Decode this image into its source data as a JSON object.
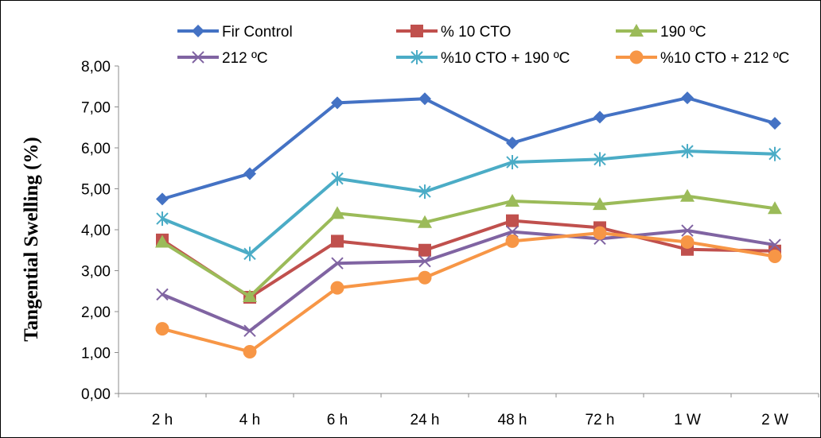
{
  "chart_data": {
    "type": "line",
    "title": "",
    "xlabel": "",
    "ylabel": "Tangential Swelling (%)",
    "categories": [
      "2 h",
      "4 h",
      "6 h",
      "24 h",
      "48 h",
      "72 h",
      "1 W",
      "2 W"
    ],
    "ylim": [
      0,
      8
    ],
    "yticks": [
      "0,00",
      "1,00",
      "2,00",
      "3,00",
      "4,00",
      "5,00",
      "6,00",
      "7,00",
      "8,00"
    ],
    "grid": false,
    "legend_position": "top",
    "series": [
      {
        "name": "Fir Control",
        "color": "#4472C4",
        "marker": "diamond",
        "values": [
          4.75,
          5.37,
          7.1,
          7.2,
          6.12,
          6.75,
          7.22,
          6.6
        ]
      },
      {
        "name": "% 10 CTO",
        "color": "#C0504D",
        "marker": "square",
        "values": [
          3.75,
          2.35,
          3.72,
          3.5,
          4.22,
          4.05,
          3.52,
          3.48
        ]
      },
      {
        "name": "190 ºC",
        "color": "#9BBB59",
        "marker": "triangle",
        "values": [
          3.7,
          2.37,
          4.4,
          4.18,
          4.7,
          4.62,
          4.82,
          4.52
        ]
      },
      {
        "name": "212 ºC",
        "color": "#8064A2",
        "marker": "x",
        "values": [
          2.42,
          1.53,
          3.18,
          3.23,
          3.95,
          3.78,
          3.98,
          3.63
        ]
      },
      {
        "name": "%10 CTO + 190 ºC",
        "color": "#4BACC6",
        "marker": "star",
        "values": [
          4.27,
          3.41,
          5.25,
          4.93,
          5.65,
          5.72,
          5.92,
          5.85
        ]
      },
      {
        "name": "%10 CTO + 212 ºC",
        "color": "#F79646",
        "marker": "circle",
        "values": [
          1.58,
          1.02,
          2.58,
          2.83,
          3.72,
          3.92,
          3.7,
          3.35
        ]
      }
    ]
  }
}
